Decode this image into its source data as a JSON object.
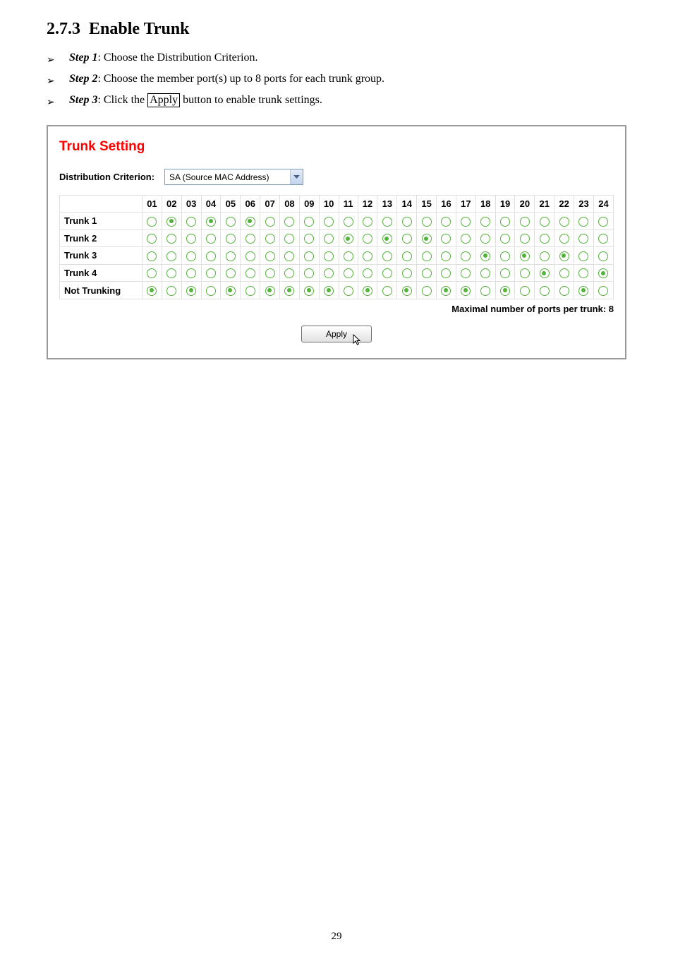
{
  "section_number": "2.7.3",
  "section_title": "Enable Trunk",
  "steps": [
    {
      "label": "Step 1",
      "text": ": Choose the Distribution Criterion."
    },
    {
      "label": "Step 2",
      "text": ": Choose the member port(s) up to 8 ports for each trunk group."
    },
    {
      "label": "Step 3",
      "prefix": ": Click the ",
      "boxed": "Apply",
      "suffix": " button to enable trunk settings."
    }
  ],
  "panel": {
    "title": "Trunk Setting",
    "criterion_label": "Distribution Criterion:",
    "criterion_value": "SA (Source MAC Address)",
    "col_headers": [
      "01",
      "02",
      "03",
      "04",
      "05",
      "06",
      "07",
      "08",
      "09",
      "10",
      "11",
      "12",
      "13",
      "14",
      "15",
      "16",
      "17",
      "18",
      "19",
      "20",
      "21",
      "22",
      "23",
      "24"
    ],
    "rows": [
      {
        "name": "Trunk 1",
        "selected": [
          2,
          4,
          6
        ]
      },
      {
        "name": "Trunk 2",
        "selected": [
          11,
          13,
          15
        ]
      },
      {
        "name": "Trunk 3",
        "selected": [
          18,
          20,
          22
        ]
      },
      {
        "name": "Trunk 4",
        "selected": [
          21,
          24
        ]
      },
      {
        "name": "Not Trunking",
        "selected": [
          1,
          3,
          5,
          7,
          8,
          9,
          10,
          12,
          14,
          16,
          17,
          19,
          23
        ]
      }
    ],
    "footnote": "Maximal number of ports per trunk: 8",
    "apply_label": "Apply"
  },
  "page_number": "29",
  "colors": {
    "radio": "#53b23a",
    "panel_title": "#ff0000",
    "border": "#999"
  }
}
